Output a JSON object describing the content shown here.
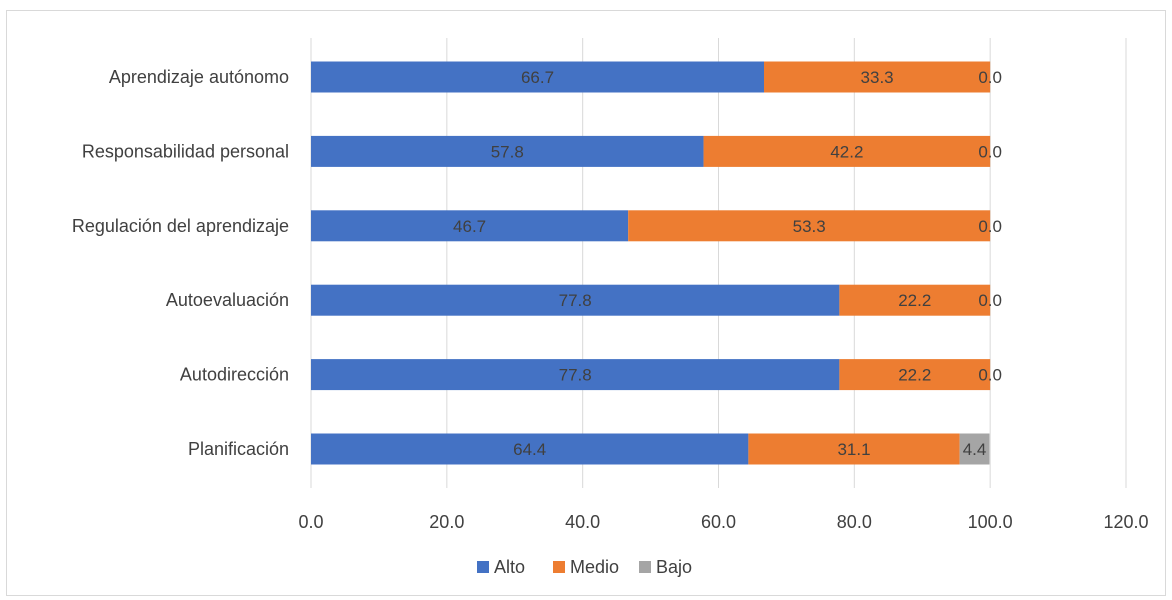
{
  "chart_data": {
    "type": "bar",
    "orientation": "horizontal",
    "stacked": true,
    "categories": [
      "Aprendizaje autónomo",
      "Responsabilidad personal",
      "Regulación del aprendizaje",
      "Autoevaluación",
      "Autodirección",
      "Planificación"
    ],
    "series": [
      {
        "name": "Alto",
        "color": "#4472c4",
        "values": [
          66.7,
          57.8,
          46.7,
          77.8,
          77.8,
          64.4
        ]
      },
      {
        "name": "Medio",
        "color": "#ed7d31",
        "values": [
          33.3,
          42.2,
          53.3,
          22.2,
          22.2,
          31.1
        ]
      },
      {
        "name": "Bajo",
        "color": "#a5a5a5",
        "values": [
          0.0,
          0.0,
          0.0,
          0.0,
          0.0,
          4.4
        ]
      }
    ],
    "xlim": [
      0,
      120
    ],
    "xticks": [
      "0.0",
      "20.0",
      "40.0",
      "60.0",
      "80.0",
      "100.0",
      "120.0"
    ],
    "grid": "vertical",
    "legend": "bottom",
    "title": "",
    "xlabel": "",
    "ylabel": ""
  }
}
